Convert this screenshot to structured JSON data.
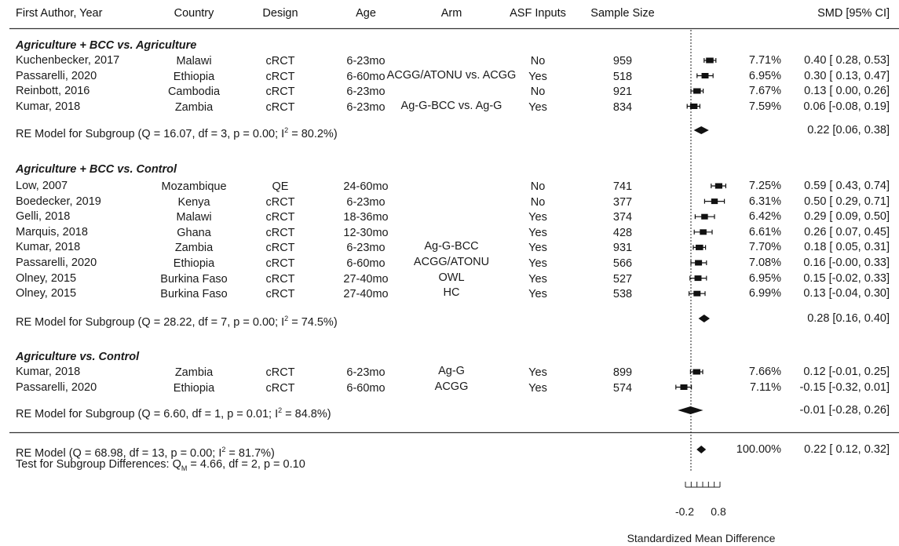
{
  "header": {
    "author": "First Author, Year",
    "country": "Country",
    "design": "Design",
    "age": "Age",
    "arm": "Arm",
    "asf": "ASF Inputs",
    "sample": "Sample Size",
    "smd": "SMD [95% CI]"
  },
  "groups": [
    {
      "title": "Agriculture + BCC vs. Agriculture",
      "rows": [
        {
          "author": "Kuchenbecker, 2017",
          "country": "Malawi",
          "design": "cRCT",
          "age": "6-23mo",
          "arm": "",
          "asf": "No",
          "n": "959",
          "weight": "7.71%",
          "ci_text": "0.40 [ 0.28, 0.53]"
        },
        {
          "author": "Passarelli, 2020",
          "country": "Ethiopia",
          "design": "cRCT",
          "age": "6-60mo",
          "arm": "ACGG/ATONU vs. ACGG",
          "asf": "Yes",
          "n": "518",
          "weight": "6.95%",
          "ci_text": "0.30 [ 0.13, 0.47]"
        },
        {
          "author": "Reinbott, 2016",
          "country": "Cambodia",
          "design": "cRCT",
          "age": "6-23mo",
          "arm": "",
          "asf": "No",
          "n": "921",
          "weight": "7.67%",
          "ci_text": "0.13 [ 0.00, 0.26]"
        },
        {
          "author": "Kumar, 2018",
          "country": "Zambia",
          "design": "cRCT",
          "age": "6-23mo",
          "arm": "Ag-G-BCC vs. Ag-G",
          "asf": "Yes",
          "n": "834",
          "weight": "7.59%",
          "ci_text": "0.06 [-0.08, 0.19]"
        }
      ],
      "summary": {
        "prefix": "RE Model for Subgroup (Q = 16.07, df = 3, p = 0.00; I",
        "sup": "2",
        "suffix": " = 80.2%)",
        "ci_text": "0.22 [0.06, 0.38]"
      }
    },
    {
      "title": "Agriculture + BCC vs. Control",
      "rows": [
        {
          "author": "Low, 2007",
          "country": "Mozambique",
          "design": "QE",
          "age": "24-60mo",
          "arm": "",
          "asf": "No",
          "n": "741",
          "weight": "7.25%",
          "ci_text": "0.59 [ 0.43, 0.74]"
        },
        {
          "author": "Boedecker, 2019",
          "country": "Kenya",
          "design": "cRCT",
          "age": "6-23mo",
          "arm": "",
          "asf": "No",
          "n": "377",
          "weight": "6.31%",
          "ci_text": "0.50 [ 0.29, 0.71]"
        },
        {
          "author": "Gelli, 2018",
          "country": "Malawi",
          "design": "cRCT",
          "age": "18-36mo",
          "arm": "",
          "asf": "Yes",
          "n": "374",
          "weight": "6.42%",
          "ci_text": "0.29 [ 0.09, 0.50]"
        },
        {
          "author": "Marquis, 2018",
          "country": "Ghana",
          "design": "cRCT",
          "age": "12-30mo",
          "arm": "",
          "asf": "Yes",
          "n": "428",
          "weight": "6.61%",
          "ci_text": "0.26 [ 0.07, 0.45]"
        },
        {
          "author": "Kumar, 2018",
          "country": "Zambia",
          "design": "cRCT",
          "age": "6-23mo",
          "arm": "Ag-G-BCC",
          "asf": "Yes",
          "n": "931",
          "weight": "7.70%",
          "ci_text": "0.18 [ 0.05, 0.31]"
        },
        {
          "author": "Passarelli, 2020",
          "country": "Ethiopia",
          "design": "cRCT",
          "age": "6-60mo",
          "arm": "ACGG/ATONU",
          "asf": "Yes",
          "n": "566",
          "weight": "7.08%",
          "ci_text": "0.16 [-0.00, 0.33]"
        },
        {
          "author": "Olney, 2015",
          "country": "Burkina Faso",
          "design": "cRCT",
          "age": "27-40mo",
          "arm": "OWL",
          "asf": "Yes",
          "n": "527",
          "weight": "6.95%",
          "ci_text": "0.15 [-0.02, 0.33]"
        },
        {
          "author": "Olney, 2015",
          "country": "Burkina Faso",
          "design": "cRCT",
          "age": "27-40mo",
          "arm": "HC",
          "asf": "Yes",
          "n": "538",
          "weight": "6.99%",
          "ci_text": "0.13 [-0.04, 0.30]"
        }
      ],
      "summary": {
        "prefix": "RE Model for Subgroup (Q = 28.22, df = 7, p = 0.00; I",
        "sup": "2",
        "suffix": " = 74.5%)",
        "ci_text": "0.28 [0.16, 0.40]"
      }
    },
    {
      "title": "Agriculture vs. Control",
      "rows": [
        {
          "author": "Kumar, 2018",
          "country": "Zambia",
          "design": "cRCT",
          "age": "6-23mo",
          "arm": "Ag-G",
          "asf": "Yes",
          "n": "899",
          "weight": "7.66%",
          "ci_text": "0.12 [-0.01, 0.25]"
        },
        {
          "author": "Passarelli, 2020",
          "country": "Ethiopia",
          "design": "cRCT",
          "age": "6-60mo",
          "arm": "ACGG",
          "asf": "Yes",
          "n": "574",
          "weight": "7.11%",
          "ci_text": "-0.15 [-0.32, 0.01]"
        }
      ],
      "summary": {
        "prefix": "RE Model for Subgroup (Q = 6.60, df = 1, p = 0.01; I",
        "sup": "2",
        "suffix": " = 84.8%)",
        "ci_text": "-0.01 [-0.28, 0.26]"
      }
    }
  ],
  "overall": {
    "prefix": "RE Model (Q = 68.98, df = 13, p = 0.00; I",
    "sup": "2",
    "suffix": " = 81.7%)",
    "weight": "100.00%",
    "ci_text": "0.22 [ 0.12, 0.32]",
    "test_prefix": "Test for Subgroup Differences: Q",
    "test_sub": "M",
    "test_suffix": " = 4.66, df = 2, p = 0.10"
  },
  "chart_data": {
    "type": "forest",
    "xlabel": "Standardized Mean Difference",
    "xtick_labels": [
      "-0.2",
      "0.8"
    ],
    "xlim": [
      -0.35,
      0.8
    ],
    "reference_line": 0,
    "studies": [
      {
        "group": 0,
        "est": 0.4,
        "lo": 0.28,
        "hi": 0.53,
        "weight": 7.71
      },
      {
        "group": 0,
        "est": 0.3,
        "lo": 0.13,
        "hi": 0.47,
        "weight": 6.95
      },
      {
        "group": 0,
        "est": 0.13,
        "lo": 0.0,
        "hi": 0.26,
        "weight": 7.67
      },
      {
        "group": 0,
        "est": 0.06,
        "lo": -0.08,
        "hi": 0.19,
        "weight": 7.59
      },
      {
        "group": 1,
        "est": 0.59,
        "lo": 0.43,
        "hi": 0.74,
        "weight": 7.25
      },
      {
        "group": 1,
        "est": 0.5,
        "lo": 0.29,
        "hi": 0.71,
        "weight": 6.31
      },
      {
        "group": 1,
        "est": 0.29,
        "lo": 0.09,
        "hi": 0.5,
        "weight": 6.42
      },
      {
        "group": 1,
        "est": 0.26,
        "lo": 0.07,
        "hi": 0.45,
        "weight": 6.61
      },
      {
        "group": 1,
        "est": 0.18,
        "lo": 0.05,
        "hi": 0.31,
        "weight": 7.7
      },
      {
        "group": 1,
        "est": 0.16,
        "lo": -0.0,
        "hi": 0.33,
        "weight": 7.08
      },
      {
        "group": 1,
        "est": 0.15,
        "lo": -0.02,
        "hi": 0.33,
        "weight": 6.95
      },
      {
        "group": 1,
        "est": 0.13,
        "lo": -0.04,
        "hi": 0.3,
        "weight": 6.99
      },
      {
        "group": 2,
        "est": 0.12,
        "lo": -0.01,
        "hi": 0.25,
        "weight": 7.66
      },
      {
        "group": 2,
        "est": -0.15,
        "lo": -0.32,
        "hi": 0.01,
        "weight": 7.11
      }
    ],
    "subgroup_summaries": [
      {
        "est": 0.22,
        "lo": 0.06,
        "hi": 0.38
      },
      {
        "est": 0.28,
        "lo": 0.16,
        "hi": 0.4
      },
      {
        "est": -0.01,
        "lo": -0.28,
        "hi": 0.26
      }
    ],
    "overall_summary": {
      "est": 0.22,
      "lo": 0.12,
      "hi": 0.32
    }
  }
}
